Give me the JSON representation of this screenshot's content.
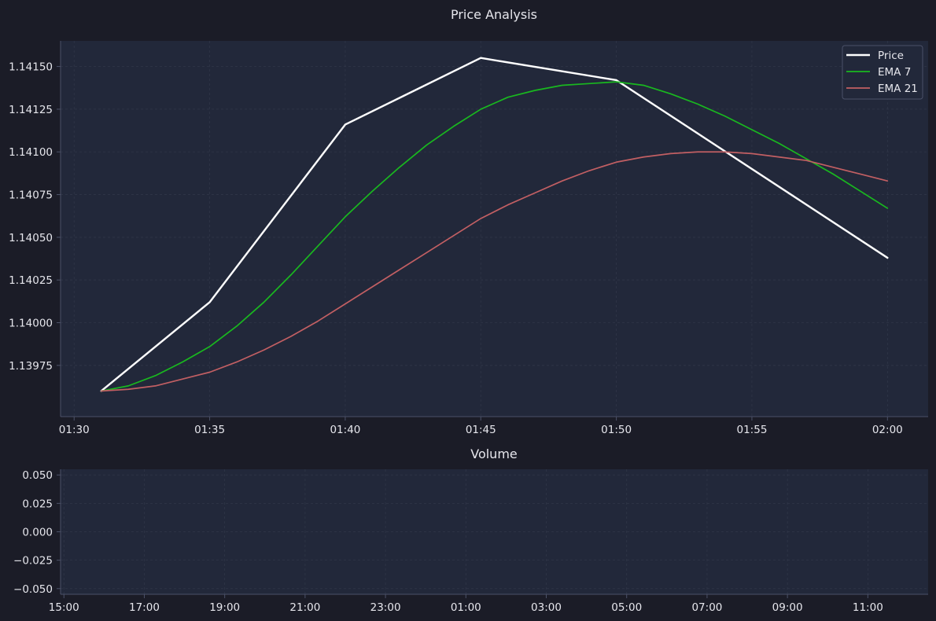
{
  "colors": {
    "background": "#1b1c27",
    "plot_background": "#22283a",
    "axis_text": "#e6e6ec",
    "grid": "#303648",
    "spine": "#4b5168",
    "price": "#ffffff",
    "ema7": "#19b81f",
    "ema21": "#c25f63"
  },
  "chart_data": [
    {
      "type": "line",
      "title": "Price Analysis",
      "xlabel": "",
      "ylabel": "",
      "x": [
        "01:31",
        "01:32",
        "01:33",
        "01:34",
        "01:35",
        "01:36",
        "01:37",
        "01:38",
        "01:39",
        "01:40",
        "01:41",
        "01:42",
        "01:43",
        "01:44",
        "01:45",
        "01:46",
        "01:47",
        "01:48",
        "01:49",
        "01:50",
        "01:51",
        "01:52",
        "01:53",
        "01:54",
        "01:55",
        "01:56",
        "01:57",
        "01:58",
        "01:59",
        "02:00"
      ],
      "xlim": [
        "01:29:30",
        "02:01:30"
      ],
      "x_ticks": [
        "01:30",
        "01:35",
        "01:40",
        "01:45",
        "01:50",
        "01:55",
        "02:00"
      ],
      "ylim": [
        1.13945,
        1.14165
      ],
      "y_ticks": [
        "1.13975",
        "1.14000",
        "1.14025",
        "1.14050",
        "1.14075",
        "1.14100",
        "1.14125",
        "1.14150"
      ],
      "y_tick_values": [
        1.13975,
        1.14,
        1.14025,
        1.1405,
        1.14075,
        1.141,
        1.14125,
        1.1415
      ],
      "grid": true,
      "legend": "top-right",
      "series": [
        {
          "name": "Price",
          "color": "#ffffff",
          "points": [
            [
              "01:31",
              1.1396
            ],
            [
              "01:35",
              1.14012
            ],
            [
              "01:40",
              1.14116
            ],
            [
              "01:45",
              1.14155
            ],
            [
              "01:50",
              1.14142
            ],
            [
              "02:00",
              1.14038
            ]
          ]
        },
        {
          "name": "EMA 7",
          "color": "#19b81f",
          "points": [
            [
              "01:31",
              1.1396
            ],
            [
              "01:32",
              1.13963
            ],
            [
              "01:33",
              1.13969
            ],
            [
              "01:34",
              1.13977
            ],
            [
              "01:35",
              1.13986
            ],
            [
              "01:36",
              1.13998
            ],
            [
              "01:37",
              1.14012
            ],
            [
              "01:38",
              1.14028
            ],
            [
              "01:39",
              1.14045
            ],
            [
              "01:40",
              1.14062
            ],
            [
              "01:41",
              1.14077
            ],
            [
              "01:42",
              1.14091
            ],
            [
              "01:43",
              1.14104
            ],
            [
              "01:44",
              1.14115
            ],
            [
              "01:45",
              1.14125
            ],
            [
              "01:46",
              1.14132
            ],
            [
              "01:47",
              1.14136
            ],
            [
              "01:48",
              1.14139
            ],
            [
              "01:49",
              1.1414
            ],
            [
              "01:50",
              1.14141
            ],
            [
              "01:51",
              1.14139
            ],
            [
              "01:52",
              1.14134
            ],
            [
              "01:53",
              1.14128
            ],
            [
              "01:54",
              1.14121
            ],
            [
              "01:55",
              1.14113
            ],
            [
              "01:56",
              1.14105
            ],
            [
              "01:57",
              1.14096
            ],
            [
              "01:58",
              1.14087
            ],
            [
              "01:59",
              1.14077
            ],
            [
              "02:00",
              1.14067
            ]
          ]
        },
        {
          "name": "EMA 21",
          "color": "#c25f63",
          "points": [
            [
              "01:31",
              1.1396
            ],
            [
              "01:32",
              1.13961
            ],
            [
              "01:33",
              1.13963
            ],
            [
              "01:34",
              1.13967
            ],
            [
              "01:35",
              1.13971
            ],
            [
              "01:36",
              1.13977
            ],
            [
              "01:37",
              1.13984
            ],
            [
              "01:38",
              1.13992
            ],
            [
              "01:39",
              1.14001
            ],
            [
              "01:40",
              1.14011
            ],
            [
              "01:41",
              1.14021
            ],
            [
              "01:42",
              1.14031
            ],
            [
              "01:43",
              1.14041
            ],
            [
              "01:44",
              1.14051
            ],
            [
              "01:45",
              1.14061
            ],
            [
              "01:46",
              1.14069
            ],
            [
              "01:47",
              1.14076
            ],
            [
              "01:48",
              1.14083
            ],
            [
              "01:49",
              1.14089
            ],
            [
              "01:50",
              1.14094
            ],
            [
              "01:51",
              1.14097
            ],
            [
              "01:52",
              1.14099
            ],
            [
              "01:53",
              1.141
            ],
            [
              "01:54",
              1.141
            ],
            [
              "01:55",
              1.14099
            ],
            [
              "01:56",
              1.14097
            ],
            [
              "01:57",
              1.14095
            ],
            [
              "01:58",
              1.14091
            ],
            [
              "01:59",
              1.14087
            ],
            [
              "02:00",
              1.14083
            ]
          ]
        }
      ]
    },
    {
      "type": "bar",
      "title": "Volume",
      "xlabel": "",
      "ylabel": "",
      "xlim": [
        "14:55",
        "12:30"
      ],
      "x_ticks": [
        "15:00",
        "17:00",
        "19:00",
        "21:00",
        "23:00",
        "01:00",
        "03:00",
        "05:00",
        "07:00",
        "09:00",
        "11:00"
      ],
      "ylim": [
        -0.055,
        0.055
      ],
      "y_ticks": [
        "0.050",
        "0.025",
        "0.000",
        "−0.025",
        "−0.050"
      ],
      "y_tick_values": [
        0.05,
        0.025,
        0.0,
        -0.025,
        -0.05
      ],
      "grid": true,
      "values": []
    }
  ]
}
